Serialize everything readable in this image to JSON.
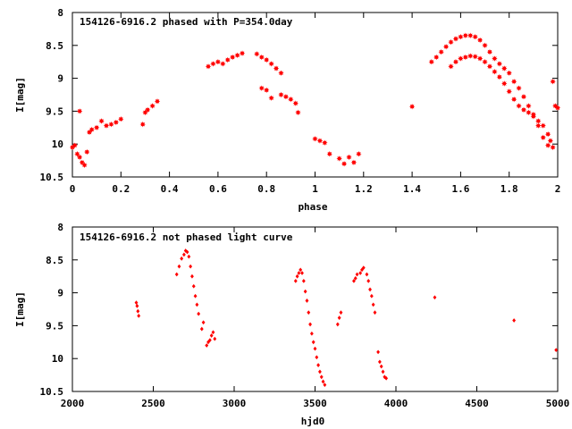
{
  "colors": {
    "points": "#ff0000",
    "axes": "#000000",
    "background": "#ffffff"
  },
  "chart_data": [
    {
      "type": "scatter",
      "title": "154126-6916.2 phased with P=354.0day",
      "xlabel": "phase",
      "ylabel": "I[mag]",
      "xlim": [
        0,
        2
      ],
      "ylim": [
        10.5,
        8
      ],
      "y_inverted": true,
      "xticks": [
        0,
        0.2,
        0.4,
        0.6,
        0.8,
        1,
        1.2,
        1.4,
        1.6,
        1.8,
        2
      ],
      "xtick_labels": [
        "0",
        "0.2",
        "0.4",
        "0.6",
        "0.8",
        "1",
        "1.2",
        "1.4",
        "1.6",
        "1.8",
        "2"
      ],
      "yticks": [
        8,
        8.5,
        9,
        9.5,
        10,
        10.5
      ],
      "ytick_labels": [
        "8",
        "8.5",
        "9",
        "9.5",
        "10",
        "10.5"
      ],
      "grid": false,
      "marker": "star",
      "series": [
        {
          "x": [
            0.0,
            0.01,
            0.02,
            0.03,
            0.04,
            0.05,
            0.06,
            0.07,
            0.08,
            0.1,
            0.12,
            0.14,
            0.16,
            0.18,
            0.2,
            0.03,
            0.29,
            0.3,
            0.31,
            0.33,
            0.35,
            0.56,
            0.58,
            0.6,
            0.62,
            0.64,
            0.66,
            0.68,
            0.7,
            0.76,
            0.78,
            0.8,
            0.82,
            0.84,
            0.86,
            0.78,
            0.8,
            0.82,
            0.86,
            0.88,
            0.9,
            0.92,
            0.93,
            1.0,
            1.02,
            1.04,
            1.06,
            1.1,
            1.12,
            1.14,
            1.16,
            1.18,
            1.4,
            1.48,
            1.5,
            1.52,
            1.54,
            1.56,
            1.58,
            1.6,
            1.62,
            1.64,
            1.66,
            1.68,
            1.7,
            1.72,
            1.74,
            1.76,
            1.78,
            1.8,
            1.82,
            1.84,
            1.86,
            1.88,
            1.9,
            1.92,
            1.94,
            1.96,
            1.98,
            1.56,
            1.58,
            1.6,
            1.62,
            1.64,
            1.66,
            1.68,
            1.7,
            1.72,
            1.74,
            1.76,
            1.78,
            1.8,
            1.82,
            1.84,
            1.86,
            1.88,
            1.9,
            1.92,
            1.94,
            1.96,
            1.97,
            1.98,
            1.99,
            2.0
          ],
          "y": [
            10.05,
            10.02,
            10.15,
            10.2,
            10.28,
            10.32,
            10.12,
            9.82,
            9.78,
            9.75,
            9.65,
            9.72,
            9.7,
            9.67,
            9.62,
            9.5,
            9.7,
            9.52,
            9.48,
            9.42,
            9.35,
            8.82,
            8.78,
            8.75,
            8.78,
            8.72,
            8.68,
            8.65,
            8.62,
            8.63,
            8.68,
            8.72,
            8.78,
            8.85,
            8.92,
            9.15,
            9.18,
            9.3,
            9.25,
            9.28,
            9.32,
            9.38,
            9.52,
            9.92,
            9.95,
            9.98,
            10.15,
            10.22,
            10.3,
            10.2,
            10.28,
            10.15,
            9.43,
            8.75,
            8.68,
            8.6,
            8.52,
            8.45,
            8.4,
            8.37,
            8.35,
            8.35,
            8.37,
            8.42,
            8.5,
            8.6,
            8.7,
            8.78,
            8.85,
            8.92,
            9.05,
            9.15,
            9.28,
            9.42,
            9.55,
            9.72,
            9.9,
            10.02,
            10.05,
            8.82,
            8.75,
            8.7,
            8.68,
            8.66,
            8.67,
            8.7,
            8.75,
            8.82,
            8.9,
            8.98,
            9.08,
            9.2,
            9.32,
            9.42,
            9.48,
            9.52,
            9.58,
            9.65,
            9.72,
            9.85,
            9.95,
            9.05,
            9.42,
            9.45
          ]
        }
      ]
    },
    {
      "type": "scatter",
      "title": "154126-6916.2 not phased light curve",
      "xlabel": "hjd0",
      "ylabel": "I[mag]",
      "xlim": [
        2000,
        5000
      ],
      "ylim": [
        10.5,
        8
      ],
      "y_inverted": true,
      "xticks": [
        2000,
        2500,
        3000,
        3500,
        4000,
        4500,
        5000
      ],
      "xtick_labels": [
        "2000",
        "2500",
        "3000",
        "3500",
        "4000",
        "4500",
        "5000"
      ],
      "yticks": [
        8,
        8.5,
        9,
        9.5,
        10,
        10.5
      ],
      "ytick_labels": [
        "8",
        "8.5",
        "9",
        "9.5",
        "10",
        "10.5"
      ],
      "grid": false,
      "marker": "diamond",
      "series": [
        {
          "x": [
            2395,
            2400,
            2405,
            2410,
            2645,
            2660,
            2675,
            2690,
            2700,
            2710,
            2720,
            2730,
            2740,
            2750,
            2760,
            2770,
            2780,
            2800,
            2810,
            2830,
            2840,
            2850,
            2860,
            2870,
            2880,
            3380,
            3390,
            3400,
            3410,
            3420,
            3430,
            3440,
            3450,
            3460,
            3470,
            3480,
            3490,
            3500,
            3510,
            3520,
            3530,
            3540,
            3550,
            3560,
            3640,
            3650,
            3660,
            3740,
            3750,
            3760,
            3780,
            3790,
            3800,
            3820,
            3830,
            3840,
            3850,
            3860,
            3870,
            3890,
            3900,
            3910,
            3920,
            3930,
            3940,
            4240,
            4730,
            4990
          ],
          "y": [
            9.15,
            9.2,
            9.28,
            9.35,
            8.72,
            8.6,
            8.48,
            8.42,
            8.36,
            8.38,
            8.45,
            8.6,
            8.75,
            8.9,
            9.05,
            9.18,
            9.32,
            9.55,
            9.45,
            9.8,
            9.75,
            9.72,
            9.65,
            9.6,
            9.7,
            8.82,
            8.75,
            8.7,
            8.65,
            8.7,
            8.82,
            8.98,
            9.12,
            9.3,
            9.48,
            9.62,
            9.75,
            9.85,
            9.98,
            10.1,
            10.2,
            10.28,
            10.35,
            10.4,
            9.48,
            9.38,
            9.3,
            8.82,
            8.78,
            8.72,
            8.7,
            8.65,
            8.62,
            8.72,
            8.82,
            8.95,
            9.05,
            9.18,
            9.3,
            9.9,
            10.05,
            10.12,
            10.2,
            10.28,
            10.3,
            9.07,
            9.42,
            9.87
          ]
        }
      ]
    }
  ]
}
